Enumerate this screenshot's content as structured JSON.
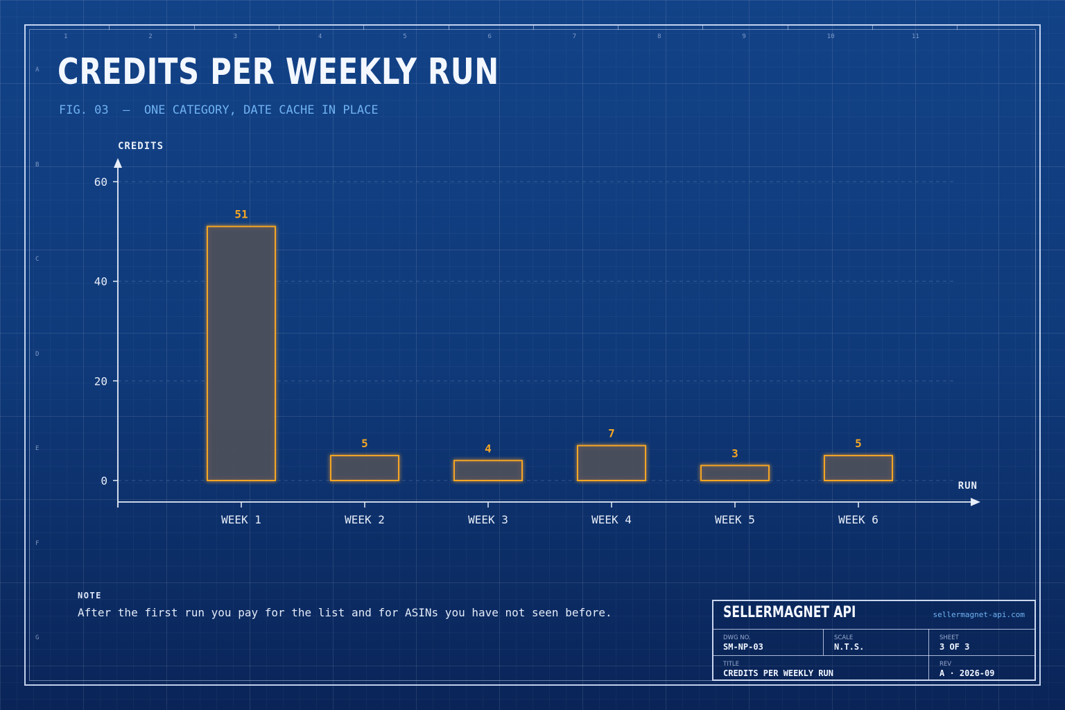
{
  "page": {
    "title": "CREDITS PER WEEKLY RUN",
    "subtitle": "FIG. 03  —  ONE CATEGORY, DATE CACHE IN PLACE"
  },
  "grid": {
    "columns": [
      "1",
      "2",
      "3",
      "4",
      "5",
      "6",
      "7",
      "8",
      "9",
      "10",
      "11"
    ],
    "rows": [
      "A",
      "B",
      "C",
      "D",
      "E",
      "F",
      "G"
    ]
  },
  "colors": {
    "bar_stroke": "#f5a623",
    "bar_fill": "#4a4f5c",
    "axis": "#e8eef8",
    "accent": "#6fb2f2"
  },
  "chart_data": {
    "type": "bar",
    "ylabel": "CREDITS",
    "xlabel": "RUN",
    "categories": [
      "WEEK 1",
      "WEEK 2",
      "WEEK 3",
      "WEEK 4",
      "WEEK 5",
      "WEEK 6"
    ],
    "values": [
      51,
      5,
      4,
      7,
      3,
      5
    ],
    "ylim": [
      0,
      60
    ],
    "yticks": [
      0,
      20,
      40,
      60
    ],
    "grid": true
  },
  "note": {
    "heading": "NOTE",
    "text": "After the first run you pay for the list and for ASINs you have not seen before."
  },
  "title_block": {
    "brand": "SELLERMAGNET API",
    "url": "sellermagnet-api.com",
    "dwg_label": "DWG NO.",
    "dwg_value": "SM-NP-03",
    "scale_label": "SCALE",
    "scale_value": "N.T.S.",
    "sheet_label": "SHEET",
    "sheet_value": "3 OF 3",
    "title_label": "TITLE",
    "title_value": "CREDITS PER WEEKLY RUN",
    "rev_label": "REV",
    "rev_value": "A · 2026-09"
  }
}
